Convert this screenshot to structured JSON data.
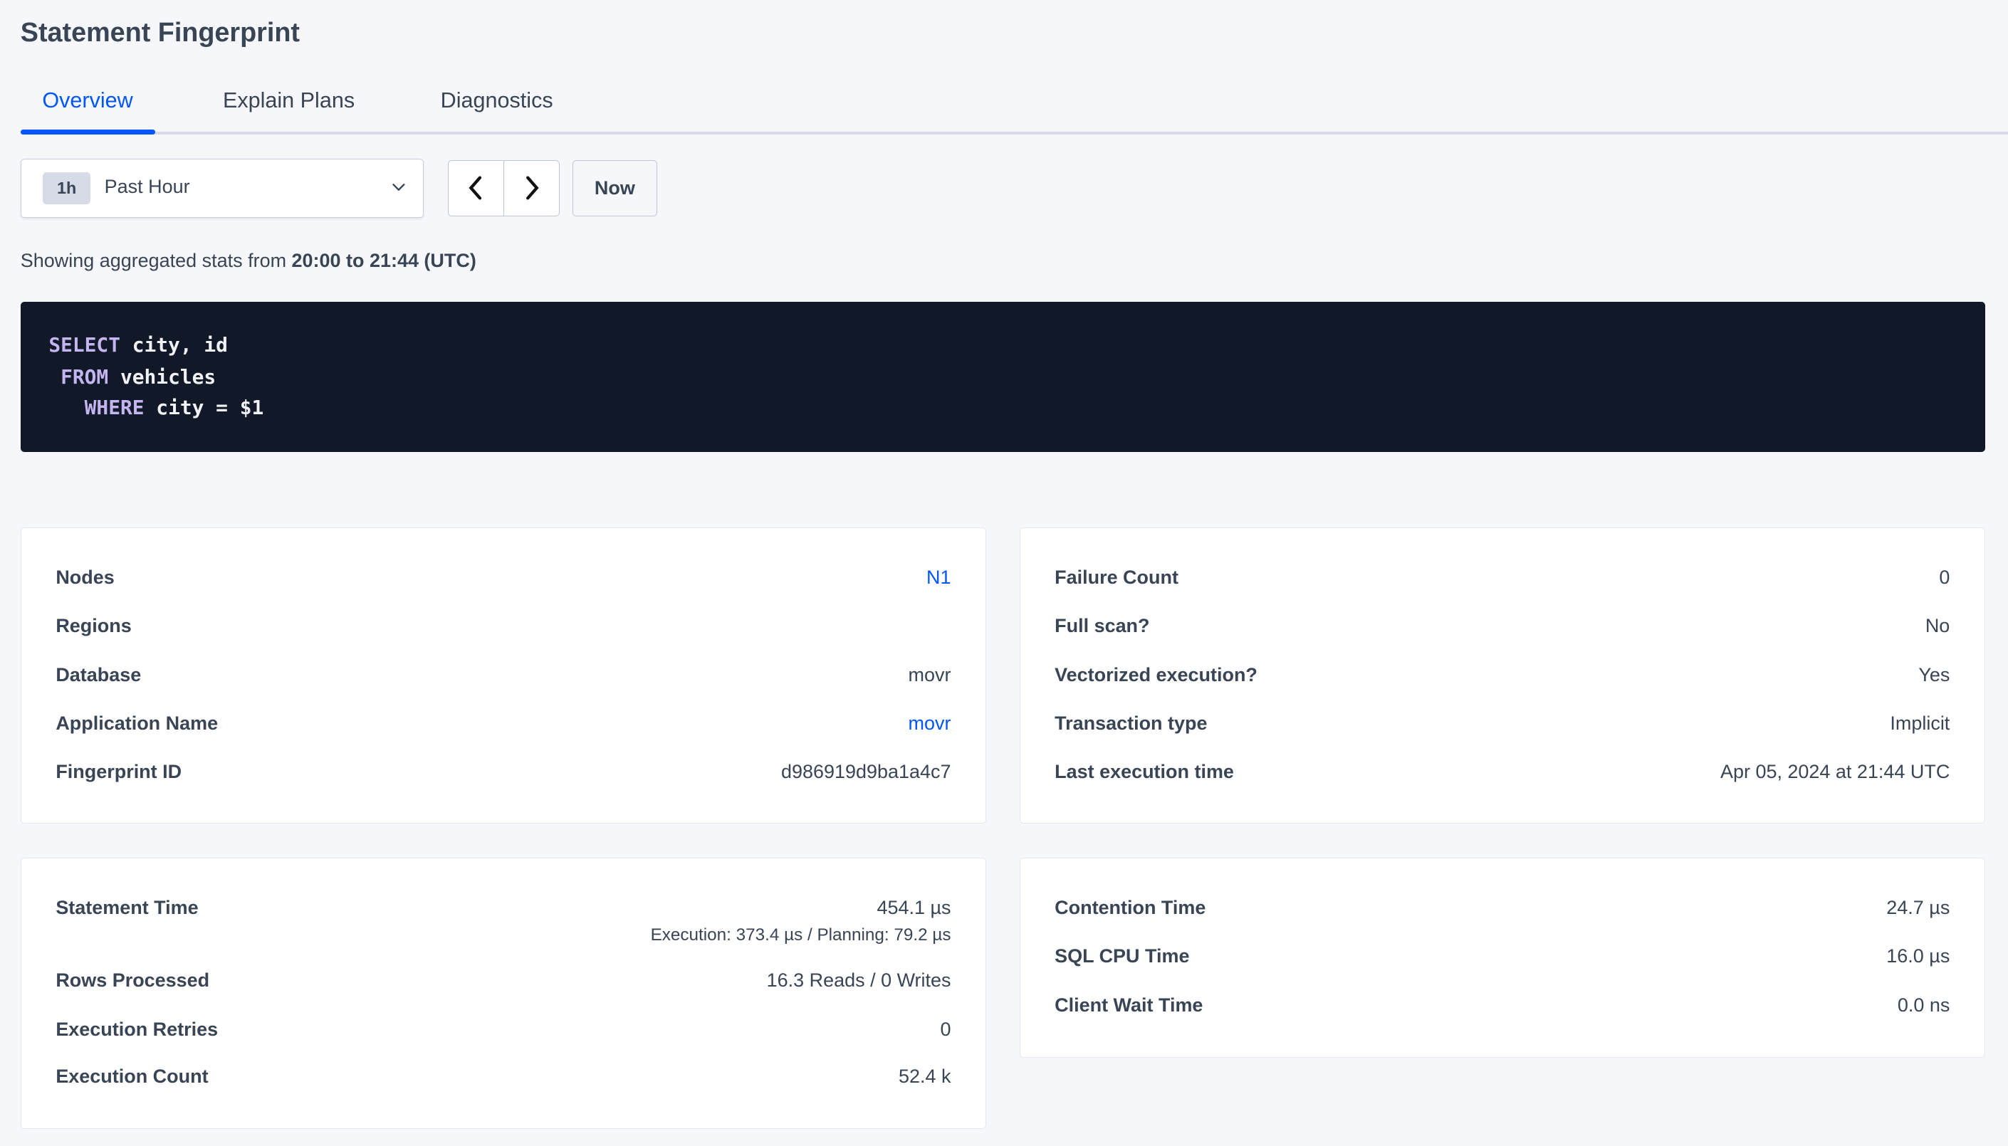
{
  "page_title": "Statement Fingerprint",
  "tabs": [
    {
      "label": "Overview",
      "active": true
    },
    {
      "label": "Explain Plans",
      "active": false
    },
    {
      "label": "Diagnostics",
      "active": false
    }
  ],
  "time_picker": {
    "badge": "1h",
    "selected": "Past Hour",
    "now_label": "Now"
  },
  "range_text": {
    "prefix": "Showing aggregated stats from ",
    "range": "20:00 to 21:44 (UTC)"
  },
  "sql": {
    "lines": [
      {
        "keyword": "SELECT",
        "rest": " city, id",
        "indent": ""
      },
      {
        "keyword": "FROM",
        "rest": " vehicles",
        "indent": " "
      },
      {
        "keyword": "WHERE",
        "rest": " city = $1",
        "indent": "   "
      }
    ]
  },
  "card1": [
    {
      "label": "Nodes",
      "value": "N1",
      "link": true
    },
    {
      "label": "Regions",
      "value": ""
    },
    {
      "label": "Database",
      "value": "movr"
    },
    {
      "label": "Application Name",
      "value": "movr",
      "link": true
    },
    {
      "label": "Fingerprint ID",
      "value": "d986919d9ba1a4c7"
    }
  ],
  "card2": [
    {
      "label": "Failure Count",
      "value": "0"
    },
    {
      "label": "Full scan?",
      "value": "No"
    },
    {
      "label": "Vectorized execution?",
      "value": "Yes"
    },
    {
      "label": "Transaction type",
      "value": "Implicit"
    },
    {
      "label": "Last execution time",
      "value": "Apr 05, 2024 at 21:44 UTC"
    }
  ],
  "card3": {
    "statement_time": {
      "label": "Statement Time",
      "value": "454.1 µs",
      "detail": "Execution: 373.4 µs / Planning: 79.2 µs"
    },
    "rows": [
      {
        "label": "Rows Processed",
        "value": "16.3 Reads / 0 Writes"
      },
      {
        "label": "Execution Retries",
        "value": "0"
      },
      {
        "label": "Execution Count",
        "value": "52.4 k"
      }
    ]
  },
  "card4": [
    {
      "label": "Contention Time",
      "value": "24.7 µs"
    },
    {
      "label": "SQL CPU Time",
      "value": "16.0 µs"
    },
    {
      "label": "Client Wait Time",
      "value": "0.0 ns"
    }
  ],
  "colors": {
    "accent": "#0055ff",
    "code_bg": "#111827",
    "keyword": "#c4b5f0",
    "text": "#394455"
  }
}
